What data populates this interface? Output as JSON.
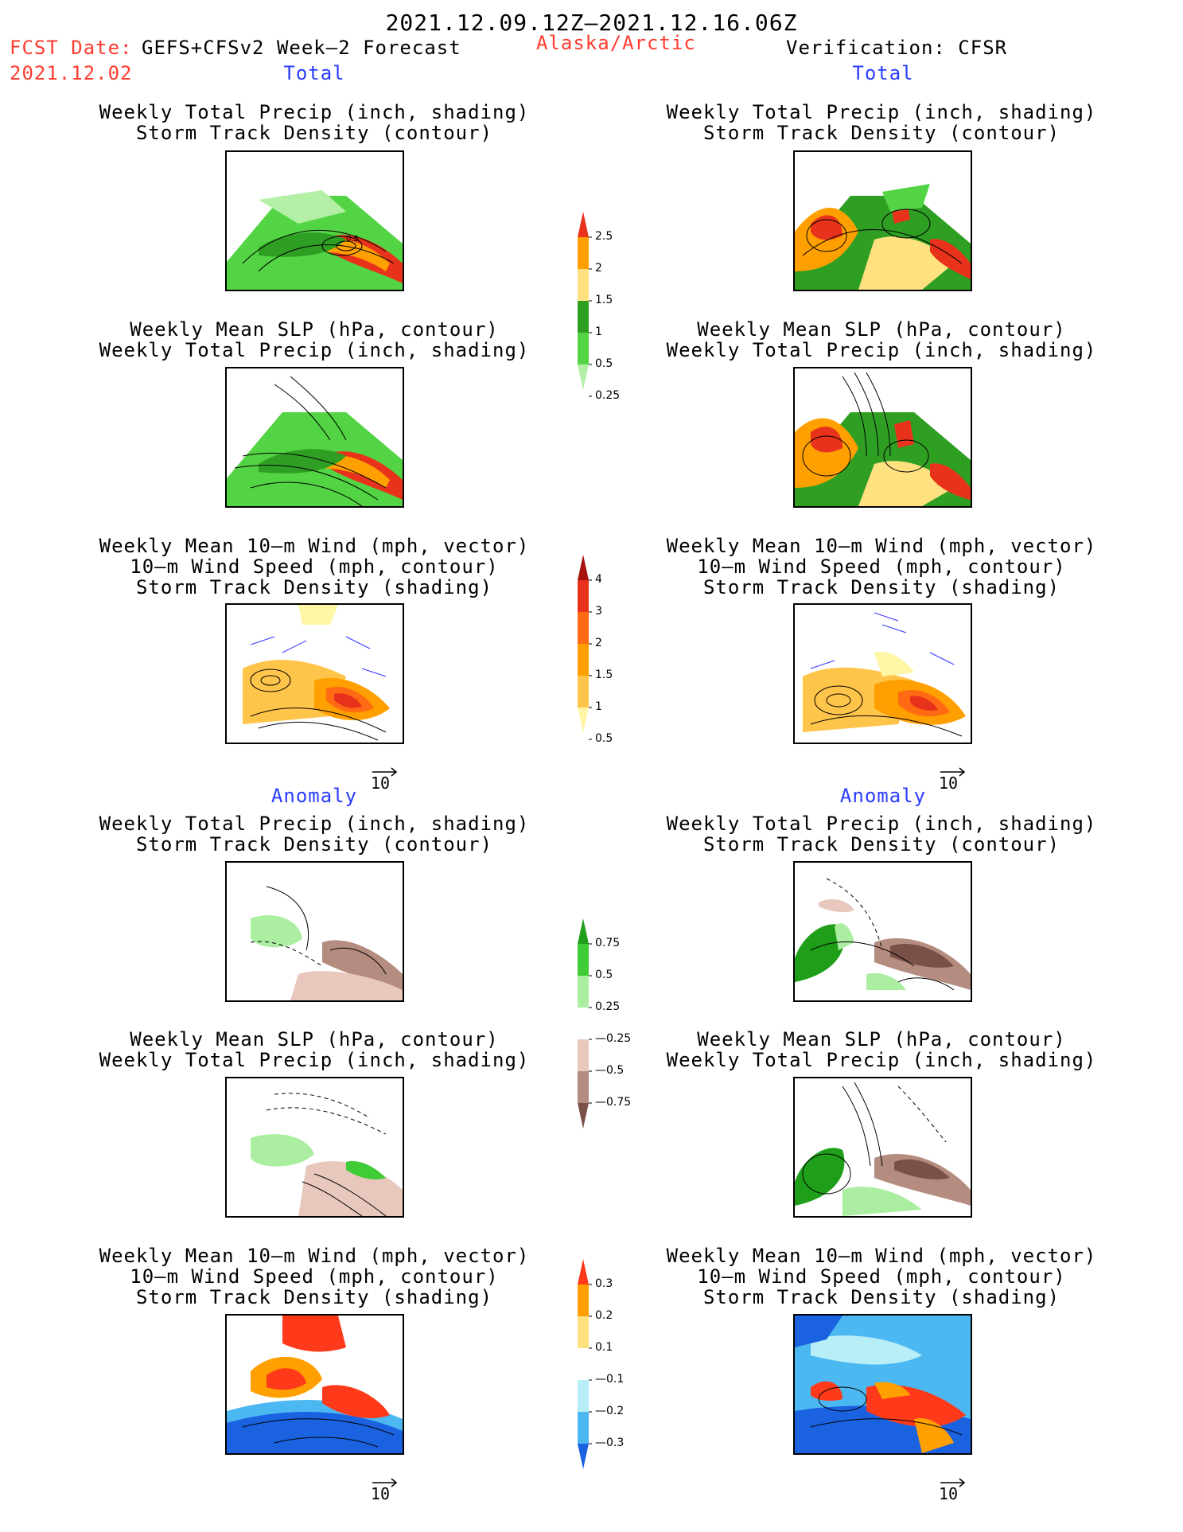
{
  "header": {
    "title": "2021.12.09.12Z—2021.12.16.06Z",
    "fcst_label": "FCST Date:",
    "model": "GEFS+CFSv2 Week—2 Forecast",
    "fcst_date": "2021.12.02",
    "region": "Alaska/Arctic",
    "verification": "Verification: CFSR"
  },
  "sections": {
    "total": "Total",
    "anomaly": "Anomaly"
  },
  "panel_titles": {
    "precip_track": [
      "Weekly Total Precip (inch, shading)",
      "Storm Track Density (contour)"
    ],
    "slp_precip": [
      "Weekly Mean SLP (hPa, contour)",
      "Weekly Total Precip (inch, shading)"
    ],
    "wind": [
      "Weekly Mean 10—m Wind (mph, vector)",
      "10—m Wind Speed (mph, contour)",
      "Storm Track Density (shading)"
    ]
  },
  "vector_reference": "10",
  "colorbars": {
    "precip_total": {
      "labels": [
        "2.5",
        "2",
        "1.5",
        "1",
        "0.5",
        "0.25"
      ],
      "colors": [
        "#e8321b",
        "#ffa000",
        "#ffe27f",
        "#2f9f23",
        "#53d444",
        "#b3f0a6"
      ]
    },
    "track_total": {
      "labels": [
        "4",
        "3",
        "2",
        "1.5",
        "1",
        "0.5"
      ],
      "colors": [
        "#a8120d",
        "#e8321b",
        "#ff6a13",
        "#ffa000",
        "#ffc44a",
        "#fff6a6"
      ]
    },
    "precip_anom": {
      "labels": [
        "0.75",
        "0.5",
        "0.25",
        "—0.25",
        "—0.5",
        "—0.75"
      ],
      "colors": [
        "#1f9e1a",
        "#3fcc36",
        "#abeea2",
        "#ffffff",
        "#e8c8bd",
        "#b48c80",
        "#7b5147"
      ]
    },
    "track_anom": {
      "labels": [
        "0.3",
        "0.2",
        "0.1",
        "—0.1",
        "—0.2",
        "—0.3"
      ],
      "colors": [
        "#ff3a1a",
        "#ffa000",
        "#ffe27f",
        "#ffffff",
        "#b7eef8",
        "#4cb8f2",
        "#1a62e0"
      ]
    }
  }
}
